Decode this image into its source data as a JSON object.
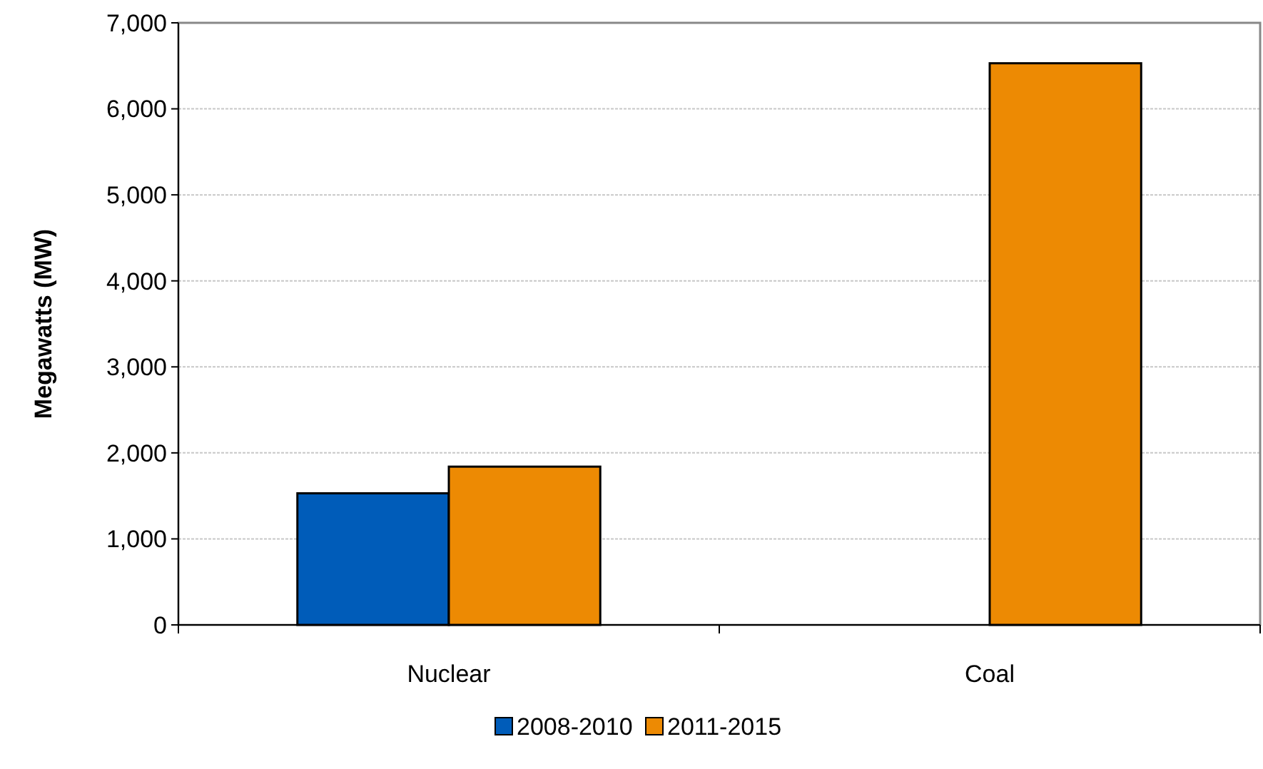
{
  "chart_data": {
    "type": "bar",
    "ylabel": "Megawatts (MW)",
    "categories": [
      "Nuclear",
      "Coal"
    ],
    "series": [
      {
        "name": "2008-2010",
        "color": "#005cb9",
        "values": [
          1530,
          null
        ]
      },
      {
        "name": "2011-2015",
        "color": "#ed8a03",
        "values": [
          1840,
          6530
        ]
      }
    ],
    "ylim": [
      0,
      7000
    ],
    "yticks": [
      {
        "value": 0,
        "label": "0"
      },
      {
        "value": 1000,
        "label": "1,000"
      },
      {
        "value": 2000,
        "label": "2,000"
      },
      {
        "value": 3000,
        "label": "3,000"
      },
      {
        "value": 4000,
        "label": "4,000"
      },
      {
        "value": 5000,
        "label": "5,000"
      },
      {
        "value": 6000,
        "label": "6,000"
      },
      {
        "value": 7000,
        "label": "7,000"
      }
    ],
    "grid": "y",
    "legend": "bottom"
  }
}
